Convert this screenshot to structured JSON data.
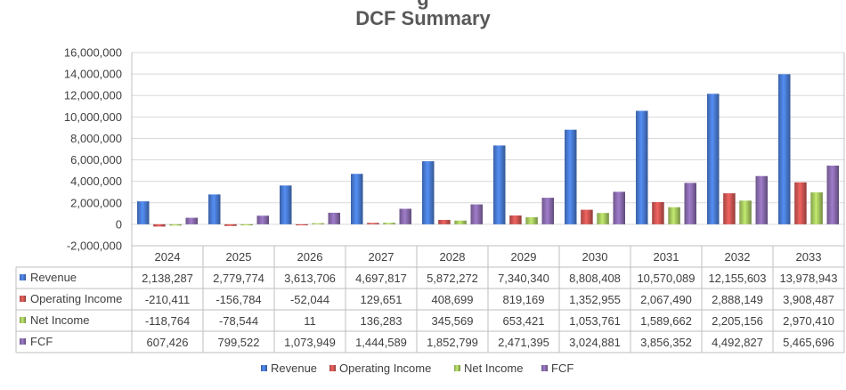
{
  "chart_data": {
    "type": "bar",
    "title_partial": "g",
    "title": "DCF Summary",
    "categories": [
      "2024",
      "2025",
      "2026",
      "2027",
      "2028",
      "2029",
      "2030",
      "2031",
      "2032",
      "2033"
    ],
    "ylim": [
      -2000000,
      16000000
    ],
    "yticks": [
      -2000000,
      0,
      2000000,
      4000000,
      6000000,
      8000000,
      10000000,
      12000000,
      14000000,
      16000000
    ],
    "ytick_labels": [
      "-2,000,000",
      "0",
      "2,000,000",
      "4,000,000",
      "6,000,000",
      "8,000,000",
      "10,000,000",
      "12,000,000",
      "14,000,000",
      "16,000,000"
    ],
    "grid": true,
    "legend_position": "bottom",
    "series": [
      {
        "name": "Revenue",
        "color": "#4472C4",
        "values": [
          2138287,
          2779774,
          3613706,
          4697817,
          5872272,
          7340340,
          8808408,
          10570089,
          12155603,
          13978943
        ],
        "labels": [
          "2,138,287",
          "2,779,774",
          "3,613,706",
          "4,697,817",
          "5,872,272",
          "7,340,340",
          "8,808,408",
          "10,570,089",
          "12,155,603",
          "13,978,943"
        ]
      },
      {
        "name": "Operating Income",
        "color": "#C0504D",
        "values": [
          -210411,
          -156784,
          -52044,
          129651,
          408699,
          819169,
          1352955,
          2067490,
          2888149,
          3908487
        ],
        "labels": [
          "-210,411",
          "-156,784",
          "-52,044",
          "129,651",
          "408,699",
          "819,169",
          "1,352,955",
          "2,067,490",
          "2,888,149",
          "3,908,487"
        ]
      },
      {
        "name": "Net Income",
        "color": "#9BBB59",
        "values": [
          -118764,
          -78544,
          11,
          136283,
          345569,
          653421,
          1053761,
          1589662,
          2205156,
          2970410
        ],
        "labels": [
          "-118,764",
          "-78,544",
          "11",
          "136,283",
          "345,569",
          "653,421",
          "1,053,761",
          "1,589,662",
          "2,205,156",
          "2,970,410"
        ]
      },
      {
        "name": "FCF",
        "color": "#8064A2",
        "values": [
          607426,
          799522,
          1073949,
          1444589,
          1852799,
          2471395,
          3024881,
          3856352,
          4492827,
          5465696
        ],
        "labels": [
          "607,426",
          "799,522",
          "1,073,949",
          "1,444,589",
          "1,852,799",
          "2,471,395",
          "3,024,881",
          "3,856,352",
          "4,492,827",
          "5,465,696"
        ]
      }
    ]
  }
}
